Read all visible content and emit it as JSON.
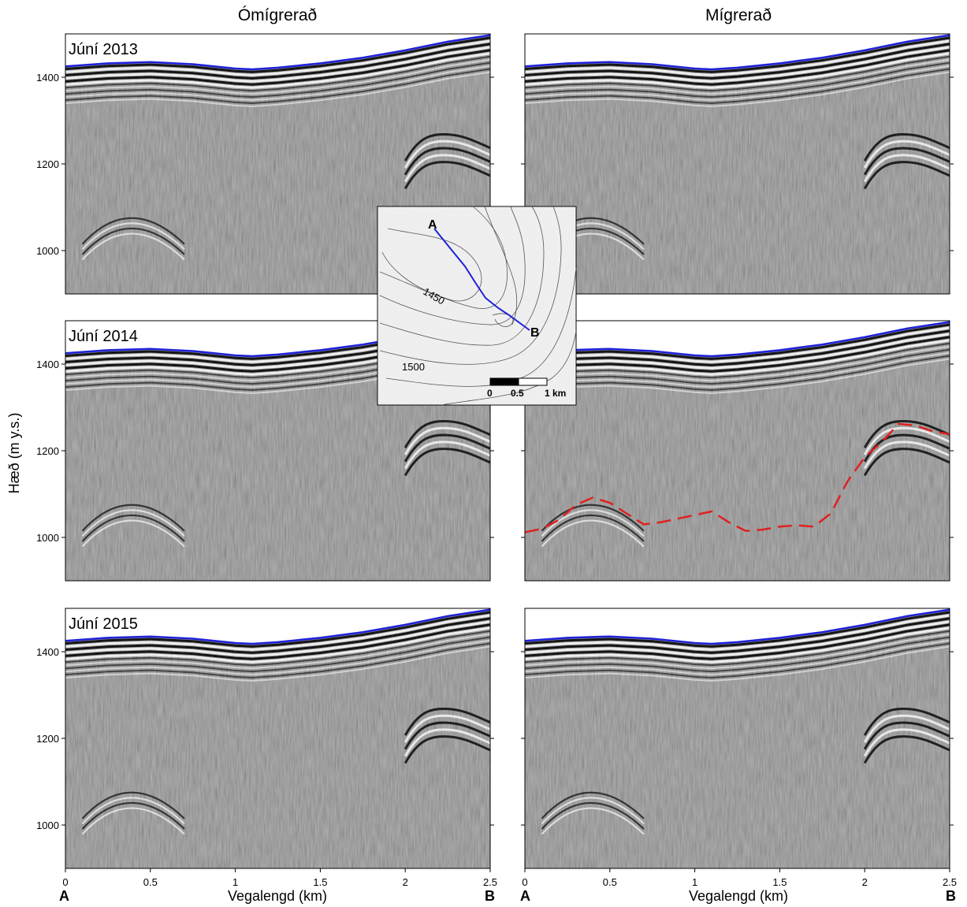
{
  "figure": {
    "column_titles": [
      "Ómígrerað",
      "Mígrerað"
    ],
    "y_axis_label": "Hæð (m y.s.)",
    "x_axis_label": "Vegalengd (km)",
    "start_point": "A",
    "end_point": "B"
  },
  "panels": {
    "years": [
      "Júní 2013",
      "Júní 2014",
      "Júní 2015"
    ]
  },
  "inset_map": {
    "point_a": "A",
    "point_b": "B",
    "contour_labels": [
      "1450",
      "1500"
    ],
    "scale_labels": [
      "0",
      "0.5",
      "1 km"
    ]
  },
  "colors": {
    "surface_line": "#1f22d8",
    "bed_pick": "#e02020",
    "radar_background": "#8c8c8c"
  },
  "chart_data": {
    "type": "radargram",
    "xlabel": "Vegalengd (km)",
    "ylabel": "Hæð (m y.s.)",
    "xlim": [
      0,
      2.5
    ],
    "ylim": [
      900,
      1500
    ],
    "x_ticks": [
      "0",
      "0.5",
      "1",
      "1.5",
      "2",
      "2.5"
    ],
    "y_ticks": [
      "1000",
      "1200",
      "1400"
    ],
    "surface_elevation": {
      "x": [
        0,
        0.25,
        0.5,
        0.75,
        1.0,
        1.1,
        1.25,
        1.5,
        1.75,
        2.0,
        2.25,
        2.5
      ],
      "y": [
        1425,
        1432,
        1435,
        1430,
        1420,
        1418,
        1422,
        1432,
        1445,
        1462,
        1482,
        1497
      ]
    },
    "bed_pick_2014_migrated": {
      "x": [
        0,
        0.1,
        0.2,
        0.3,
        0.4,
        0.5,
        0.6,
        0.7,
        0.8,
        1.1,
        1.2,
        1.3,
        1.4,
        1.5,
        1.6,
        1.7,
        1.8,
        1.9,
        2.0,
        2.1,
        2.2,
        2.3,
        2.4,
        2.5
      ],
      "y": [
        1012,
        1020,
        1040,
        1075,
        1092,
        1080,
        1055,
        1030,
        1035,
        1060,
        1035,
        1015,
        1018,
        1025,
        1028,
        1025,
        1055,
        1130,
        1185,
        1220,
        1262,
        1258,
        1245,
        1238
      ]
    }
  }
}
